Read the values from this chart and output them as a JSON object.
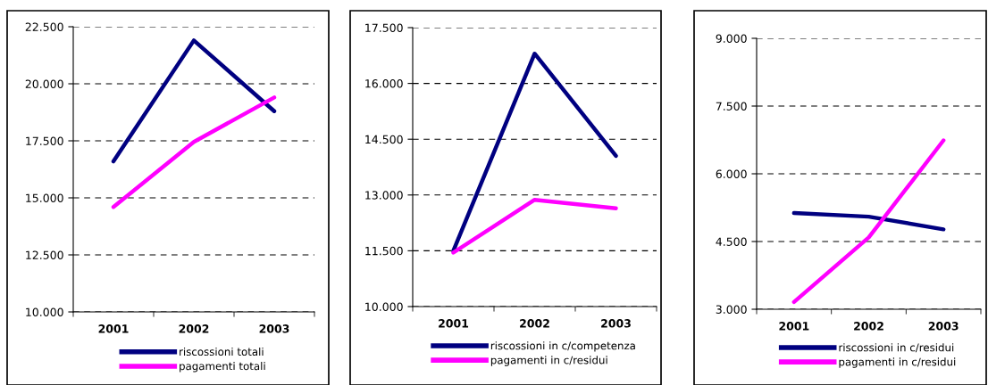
{
  "chart_data": [
    {
      "type": "line",
      "categories": [
        "2001",
        "2002",
        "2003"
      ],
      "series": [
        {
          "name": "riscossioni totali",
          "color": "#000080",
          "values": [
            16600,
            21900,
            18800
          ]
        },
        {
          "name": "pagamenti totali",
          "color": "#ff00ff",
          "values": [
            14600,
            17450,
            19400
          ]
        }
      ],
      "ylim": [
        10000,
        22500
      ],
      "yticks": [
        {
          "value": 10000,
          "label": "10.000"
        },
        {
          "value": 12500,
          "label": "12.500"
        },
        {
          "value": 15000,
          "label": "15.000"
        },
        {
          "value": 17500,
          "label": "17.500"
        },
        {
          "value": 20000,
          "label": "20.000"
        },
        {
          "value": 22500,
          "label": "22.500"
        }
      ],
      "grid": "y",
      "legend": "bottom",
      "marker": "none",
      "line_style": "solid"
    },
    {
      "type": "line",
      "categories": [
        "2001",
        "2002",
        "2003"
      ],
      "series": [
        {
          "name": "riscossioni in c/competenza",
          "color": "#000080",
          "values": [
            11500,
            16800,
            14050
          ]
        },
        {
          "name": "pagamenti in c/residui",
          "color": "#ff00ff",
          "values": [
            11450,
            12870,
            12640
          ]
        }
      ],
      "ylim": [
        10000,
        17500
      ],
      "yticks": [
        {
          "value": 10000,
          "label": "10.000"
        },
        {
          "value": 11500,
          "label": "11.500"
        },
        {
          "value": 13000,
          "label": "13.000"
        },
        {
          "value": 14500,
          "label": "14.500"
        },
        {
          "value": 16000,
          "label": "16.000"
        },
        {
          "value": 17500,
          "label": "17.500"
        }
      ],
      "grid": "y",
      "legend": "bottom",
      "marker": "none",
      "line_style": "solid"
    },
    {
      "type": "line",
      "categories": [
        "2001",
        "2002",
        "2003"
      ],
      "series": [
        {
          "name": "riscossioni in c/residui",
          "color": "#000080",
          "values": [
            5130,
            5050,
            4770
          ]
        },
        {
          "name": "pagamenti in c/residui",
          "color": "#ff00ff",
          "values": [
            3160,
            4590,
            6740
          ]
        }
      ],
      "ylim": [
        3000,
        9000
      ],
      "yticks": [
        {
          "value": 3000,
          "label": "3.000"
        },
        {
          "value": 4500,
          "label": "4.500"
        },
        {
          "value": 6000,
          "label": "6.000"
        },
        {
          "value": 7500,
          "label": "7.500"
        },
        {
          "value": 9000,
          "label": "9.000"
        }
      ],
      "grid": "y",
      "legend": "bottom",
      "marker": "none",
      "line_style": "solid"
    }
  ]
}
